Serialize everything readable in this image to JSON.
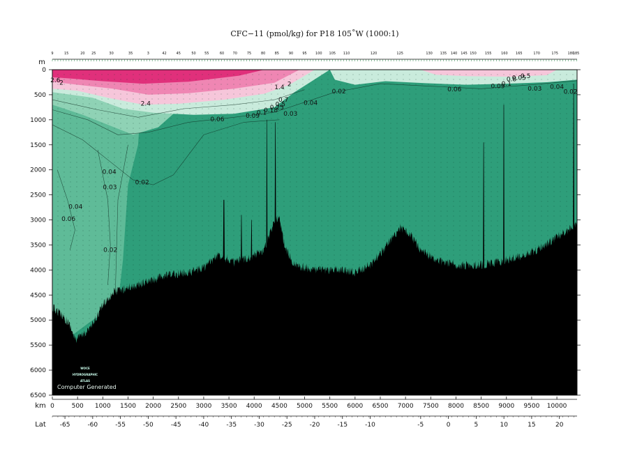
{
  "chart_data": {
    "type": "heatmap",
    "title": "CFC−11 (pmol/kg) for P18 105˚W (1000:1)",
    "ylabel": "m",
    "xlabel": "km",
    "lat_label": "Lat",
    "ylim": [
      0,
      6500
    ],
    "xlim": [
      0,
      10400
    ],
    "depth_ticks": [
      "0",
      "500",
      "1000",
      "1500",
      "2000",
      "2500",
      "3000",
      "3500",
      "4000",
      "4500",
      "5000",
      "5500",
      "6000",
      "6500"
    ],
    "km_ticks": [
      "0",
      "500",
      "1000",
      "1500",
      "2000",
      "2500",
      "3000",
      "3500",
      "4000",
      "4500",
      "5000",
      "5500",
      "6000",
      "6500",
      "7000",
      "7500",
      "8000",
      "8500",
      "9000",
      "9500",
      "10000"
    ],
    "lat_ticks": [
      {
        "label": "-65",
        "km": 250
      },
      {
        "label": "-60",
        "km": 800
      },
      {
        "label": "-55",
        "km": 1350
      },
      {
        "label": "-50",
        "km": 1900
      },
      {
        "label": "-45",
        "km": 2450
      },
      {
        "label": "-40",
        "km": 3000
      },
      {
        "label": "-35",
        "km": 3550
      },
      {
        "label": "-30",
        "km": 4100
      },
      {
        "label": "-25",
        "km": 4650
      },
      {
        "label": "-20",
        "km": 5200
      },
      {
        "label": "-15",
        "km": 5750
      },
      {
        "label": "-10",
        "km": 6300
      },
      {
        "label": "-5",
        "km": 7300
      },
      {
        "label": "0",
        "km": 7850
      },
      {
        "label": "5",
        "km": 8400
      },
      {
        "label": "10",
        "km": 8950
      },
      {
        "label": "15",
        "km": 9500
      },
      {
        "label": "20",
        "km": 10050
      }
    ],
    "station_labels": [
      {
        "label": "9",
        "km": 0
      },
      {
        "label": "15",
        "km": 280
      },
      {
        "label": "20",
        "km": 600
      },
      {
        "label": "25",
        "km": 820
      },
      {
        "label": "30",
        "km": 1170
      },
      {
        "label": "35",
        "km": 1550
      },
      {
        "label": "3",
        "km": 1900
      },
      {
        "label": "42",
        "km": 2220
      },
      {
        "label": "45",
        "km": 2500
      },
      {
        "label": "50",
        "km": 2800
      },
      {
        "label": "55",
        "km": 3060
      },
      {
        "label": "60",
        "km": 3360
      },
      {
        "label": "70",
        "km": 3620
      },
      {
        "label": "75",
        "km": 3900
      },
      {
        "label": "80",
        "km": 4180
      },
      {
        "label": "85",
        "km": 4450
      },
      {
        "label": "90",
        "km": 4730
      },
      {
        "label": "95",
        "km": 5000
      },
      {
        "label": "100",
        "km": 5280
      },
      {
        "label": "105",
        "km": 5550
      },
      {
        "label": "110",
        "km": 5830
      },
      {
        "label": "120",
        "km": 6370
      },
      {
        "label": "125",
        "km": 6890
      },
      {
        "label": "130",
        "km": 7470
      },
      {
        "label": "135",
        "km": 7750
      },
      {
        "label": "140",
        "km": 7960
      },
      {
        "label": "145",
        "km": 8160
      },
      {
        "label": "150",
        "km": 8340
      },
      {
        "label": "155",
        "km": 8640
      },
      {
        "label": "160",
        "km": 8960
      },
      {
        "label": "165",
        "km": 9250
      },
      {
        "label": "170",
        "km": 9600
      },
      {
        "label": "175",
        "km": 9960
      },
      {
        "label": "180",
        "km": 10280
      },
      {
        "label": "185",
        "km": 10380
      }
    ],
    "contour_labels": [
      {
        "text": "2.6",
        "km": 60,
        "depth": 250
      },
      {
        "text": "2",
        "km": 180,
        "depth": 300
      },
      {
        "text": "2",
        "km": 4700,
        "depth": 330
      },
      {
        "text": "1.4",
        "km": 4500,
        "depth": 390
      },
      {
        "text": "2.4",
        "km": 1850,
        "depth": 720
      },
      {
        "text": "0.7",
        "km": 4580,
        "depth": 640
      },
      {
        "text": "0.5",
        "km": 4520,
        "depth": 730
      },
      {
        "text": "0.25",
        "km": 4450,
        "depth": 790
      },
      {
        "text": "0.18",
        "km": 4330,
        "depth": 850
      },
      {
        "text": "0.1",
        "km": 4150,
        "depth": 900
      },
      {
        "text": "0.09",
        "km": 3970,
        "depth": 960
      },
      {
        "text": "0.03",
        "km": 4720,
        "depth": 920
      },
      {
        "text": "0.06",
        "km": 3270,
        "depth": 1030
      },
      {
        "text": "0.04",
        "km": 5120,
        "depth": 700
      },
      {
        "text": "0.02",
        "km": 5680,
        "depth": 470
      },
      {
        "text": "0.06",
        "km": 7970,
        "depth": 430
      },
      {
        "text": "0.09",
        "km": 8830,
        "depth": 370
      },
      {
        "text": "0.1",
        "km": 9000,
        "depth": 320
      },
      {
        "text": "0.8",
        "km": 9100,
        "depth": 230
      },
      {
        "text": "0.05",
        "km": 9250,
        "depth": 200
      },
      {
        "text": "0.5",
        "km": 9380,
        "depth": 170
      },
      {
        "text": "0.03",
        "km": 9560,
        "depth": 420
      },
      {
        "text": "0.04",
        "km": 10000,
        "depth": 380
      },
      {
        "text": "0.02",
        "km": 10270,
        "depth": 480
      },
      {
        "text": "0.04",
        "km": 1130,
        "depth": 2080
      },
      {
        "text": "0.03",
        "km": 1140,
        "depth": 2390
      },
      {
        "text": "0.02",
        "km": 1780,
        "depth": 2290
      },
      {
        "text": "0.04",
        "km": 460,
        "depth": 2780
      },
      {
        "text": "0.06",
        "km": 320,
        "depth": 3020
      },
      {
        "text": "0.02",
        "km": 1150,
        "depth": 3640
      }
    ],
    "colors": {
      "very_low": "#2e9e7a",
      "low": "#5fbb98",
      "low_mid": "#8fd2b5",
      "mid": "#c9ebdc",
      "high_low": "#f6c6da",
      "high": "#ef86b3",
      "very_high": "#e0307b",
      "seafloor": "#000000"
    },
    "grid": false
  },
  "logo": {
    "line1": "WOCE",
    "line2": "HYDROGRAPHIC",
    "line3": "ATLAS"
  },
  "credit": "Computer Generated"
}
